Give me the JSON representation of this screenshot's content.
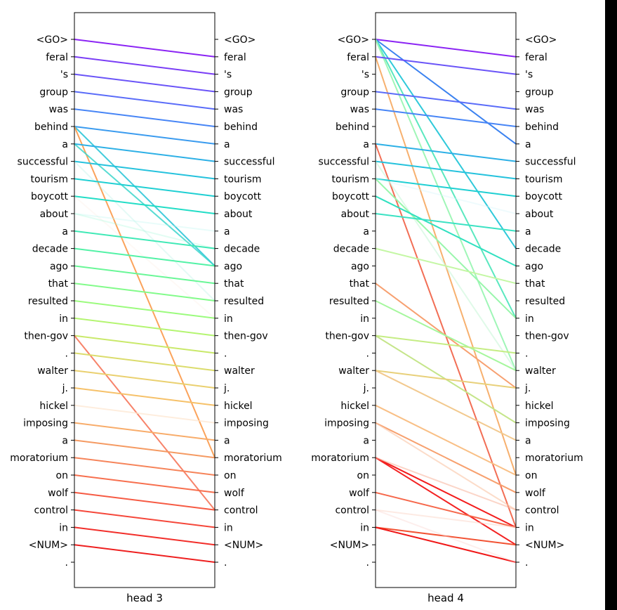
{
  "panels": [
    {
      "title": "head 3",
      "links": [
        [
          0,
          1,
          "#8b24f4",
          1
        ],
        [
          1,
          2,
          "#7a3df6",
          1
        ],
        [
          2,
          3,
          "#6a54f8",
          1
        ],
        [
          3,
          4,
          "#5a6cf9",
          1
        ],
        [
          4,
          5,
          "#4785f6",
          1
        ],
        [
          5,
          6,
          "#3a9bef",
          1
        ],
        [
          5,
          13,
          "#2fc6d8",
          0.9
        ],
        [
          5,
          24,
          "#fba35b",
          1
        ],
        [
          6,
          7,
          "#2db0e6",
          1
        ],
        [
          6,
          13,
          "#3cd6cb",
          0.85
        ],
        [
          7,
          8,
          "#25c2dd",
          1
        ],
        [
          7,
          15,
          "#a8f0e0",
          0.3
        ],
        [
          8,
          9,
          "#1fcfd3",
          1
        ],
        [
          9,
          10,
          "#22ddc6",
          1
        ],
        [
          9,
          16,
          "#f8d9c4",
          0.15
        ],
        [
          10,
          11,
          "#bdf5f0",
          0.35
        ],
        [
          10,
          12,
          "#a0f7d6",
          0.3
        ],
        [
          11,
          12,
          "#40e9b6",
          1
        ],
        [
          12,
          13,
          "#52f2a6",
          1
        ],
        [
          13,
          14,
          "#69f797",
          1
        ],
        [
          14,
          15,
          "#82fb8a",
          1
        ],
        [
          15,
          16,
          "#9bfb7d",
          1
        ],
        [
          16,
          17,
          "#b4f571",
          1
        ],
        [
          17,
          18,
          "#c9e96a",
          1
        ],
        [
          17,
          27,
          "#f7836a",
          1
        ],
        [
          18,
          19,
          "#dbdc6c",
          1
        ],
        [
          19,
          20,
          "#ead06f",
          1
        ],
        [
          20,
          21,
          "#f6c169",
          1
        ],
        [
          21,
          22,
          "#fde5cf",
          0.7
        ],
        [
          22,
          23,
          "#f8ac6a",
          1
        ],
        [
          23,
          24,
          "#f59a62",
          1
        ],
        [
          24,
          25,
          "#f6845a",
          1
        ],
        [
          25,
          26,
          "#f76f4e",
          1
        ],
        [
          26,
          27,
          "#f65a43",
          1
        ],
        [
          27,
          28,
          "#f5473a",
          1
        ],
        [
          28,
          29,
          "#f22e2a",
          1
        ],
        [
          29,
          30,
          "#ee1f1f",
          1
        ]
      ]
    },
    {
      "title": "head 4",
      "links": [
        [
          0,
          1,
          "#8b24f4",
          1
        ],
        [
          0,
          6,
          "#3b82f0",
          1
        ],
        [
          0,
          12,
          "#2fc9da",
          1
        ],
        [
          0,
          16,
          "#5ae8bf",
          1
        ],
        [
          0,
          19,
          "#9ff6b7",
          1
        ],
        [
          1,
          2,
          "#6a54f8",
          1
        ],
        [
          1,
          25,
          "#f7b06e",
          1
        ],
        [
          3,
          4,
          "#5a6cf9",
          1
        ],
        [
          4,
          5,
          "#4785f6",
          1
        ],
        [
          6,
          7,
          "#2db0e6",
          1
        ],
        [
          6,
          28,
          "#f26e55",
          1
        ],
        [
          7,
          8,
          "#25c2dd",
          1
        ],
        [
          7,
          19,
          "#c9f7d8",
          0.6
        ],
        [
          8,
          9,
          "#1fcfd3",
          1
        ],
        [
          8,
          10,
          "#d6f5fb",
          0.4
        ],
        [
          8,
          16,
          "#98f6ab",
          1
        ],
        [
          9,
          13,
          "#30e0c0",
          1
        ],
        [
          10,
          11,
          "#3be2c3",
          1
        ],
        [
          12,
          14,
          "#c4f7a4",
          1
        ],
        [
          14,
          20,
          "#f7a070",
          1
        ],
        [
          15,
          19,
          "#a5f79d",
          1
        ],
        [
          17,
          18,
          "#c5ed84",
          1
        ],
        [
          17,
          22,
          "#c5e58a",
          1
        ],
        [
          19,
          20,
          "#e8d07a",
          1
        ],
        [
          19,
          23,
          "#f2c98e",
          1
        ],
        [
          21,
          25,
          "#f9bf85",
          1
        ],
        [
          22,
          26,
          "#f7a06e",
          1
        ],
        [
          22,
          27,
          "#fac5a5",
          0.6
        ],
        [
          24,
          28,
          "#f31c1c",
          1
        ],
        [
          24,
          29,
          "#f32222",
          1
        ],
        [
          24,
          27,
          "#f8b39a",
          0.55
        ],
        [
          26,
          28,
          "#f6674a",
          1
        ],
        [
          27,
          28,
          "#fbd6c8",
          0.5
        ],
        [
          28,
          29,
          "#f25233",
          1
        ],
        [
          28,
          30,
          "#f01818",
          1
        ],
        [
          27,
          30,
          "#fad4cf",
          0.4
        ]
      ]
    }
  ],
  "tokens": [
    "<GO>",
    "feral",
    "'s",
    "group",
    "was",
    "behind",
    "a",
    "successful",
    "tourism",
    "boycott",
    "about",
    "a",
    "decade",
    "ago",
    "that",
    "resulted",
    "in",
    "then-gov",
    ".",
    "walter",
    "j.",
    "hickel",
    "imposing",
    "a",
    "moratorium",
    "on",
    "wolf",
    "control",
    "in",
    "<NUM>",
    "."
  ]
}
